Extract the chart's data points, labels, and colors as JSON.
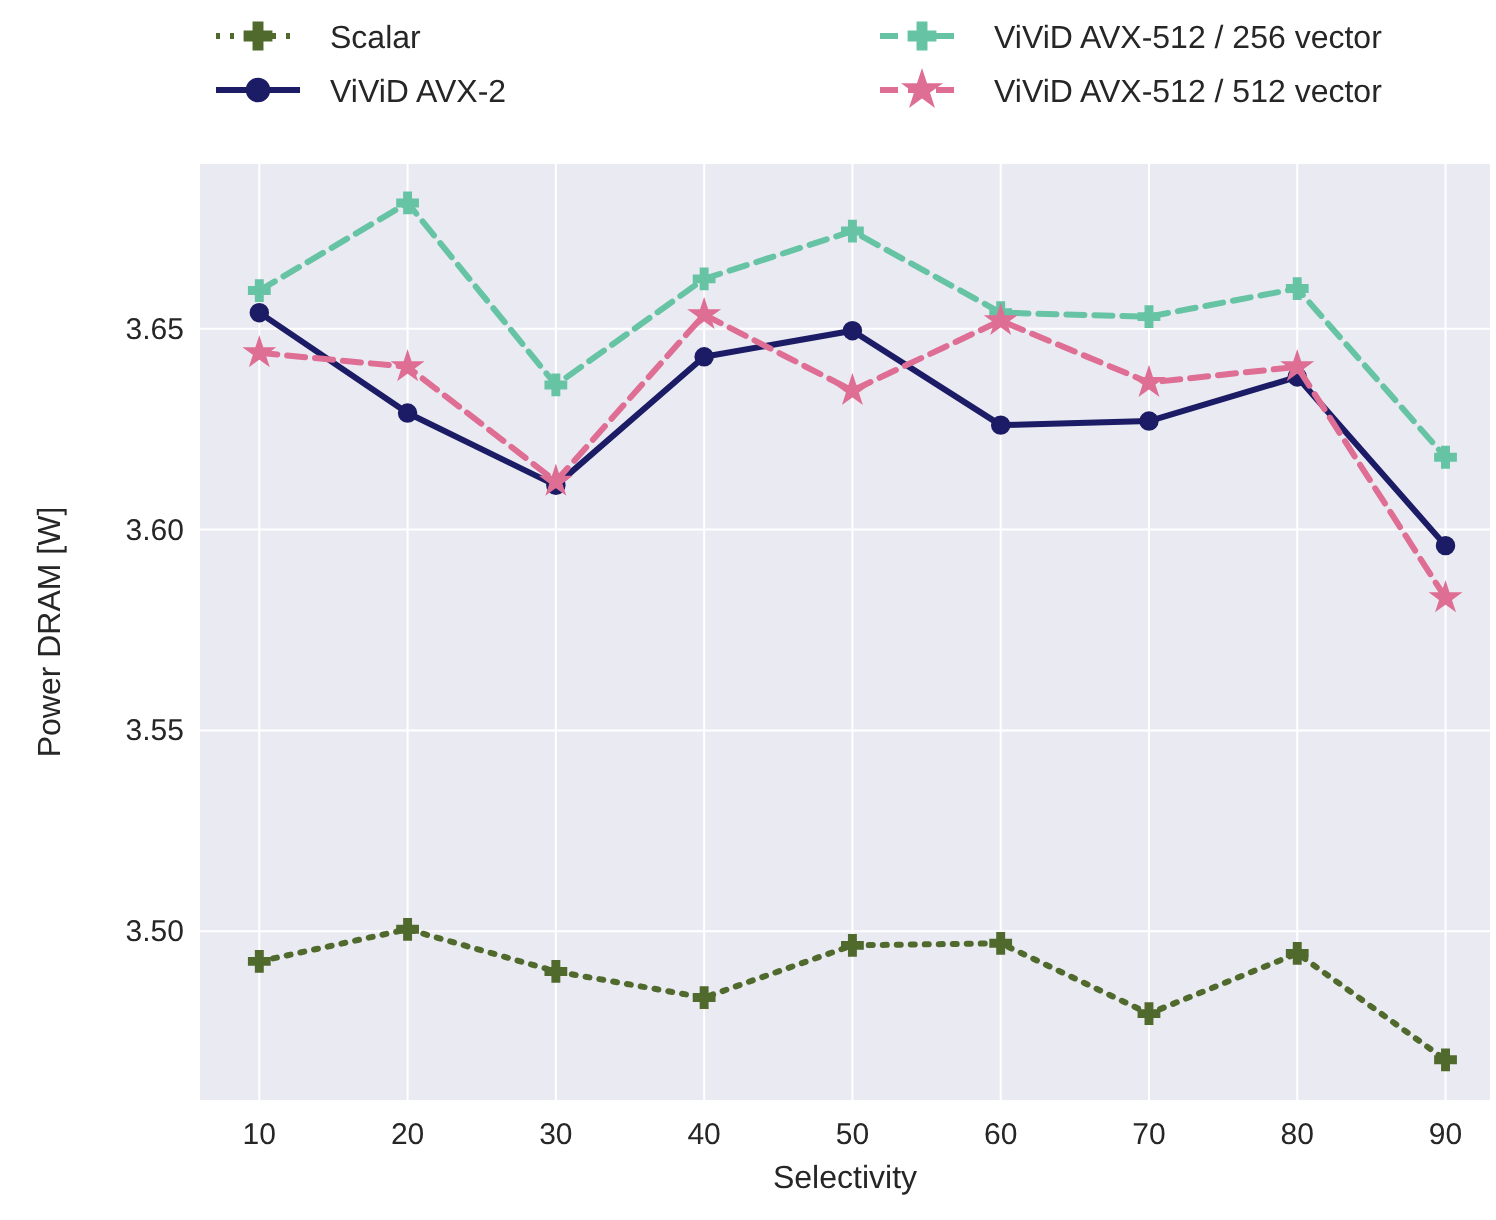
{
  "chart_data": {
    "type": "line",
    "xlabel": "Selectivity",
    "ylabel": "Power DRAM [W]",
    "x": [
      10,
      20,
      30,
      40,
      50,
      60,
      70,
      80,
      90
    ],
    "xlim": [
      6,
      93
    ],
    "xticks": [
      10,
      20,
      30,
      40,
      50,
      60,
      70,
      80,
      90
    ],
    "ylim": [
      3.458,
      3.691
    ],
    "yticks": [
      {
        "value": 3.5,
        "label": "3.50"
      },
      3.55,
      {
        "value": 3.6,
        "label": "3.60"
      },
      3.65
    ],
    "grid": true,
    "legend": "top",
    "series": [
      {
        "name": "Scalar",
        "color": "#4f6a2c",
        "marker": "cross",
        "line_style": "dotted",
        "values": [
          3.4925,
          3.5005,
          3.49,
          3.4835,
          3.4965,
          3.497,
          3.4795,
          3.4945,
          3.468
        ]
      },
      {
        "name": "ViViD AVX-2",
        "color": "#1b1b66",
        "marker": "circle",
        "line_style": "solid",
        "values": [
          3.654,
          3.629,
          3.611,
          3.643,
          3.6495,
          3.626,
          3.627,
          3.638,
          3.596
        ]
      },
      {
        "name": "ViViD AVX-512 / 256 vector",
        "color": "#66c4a4",
        "marker": "cross",
        "line_style": "dashed",
        "values": [
          3.6595,
          3.6813,
          3.636,
          3.6624,
          3.6743,
          3.654,
          3.653,
          3.66,
          3.618
        ]
      },
      {
        "name": "ViViD AVX-512 / 512 vector",
        "color": "#de6e93",
        "marker": "star",
        "line_style": "dashed",
        "values": [
          3.644,
          3.6405,
          3.612,
          3.6535,
          3.6346,
          3.652,
          3.6366,
          3.6405,
          3.583
        ]
      }
    ]
  }
}
